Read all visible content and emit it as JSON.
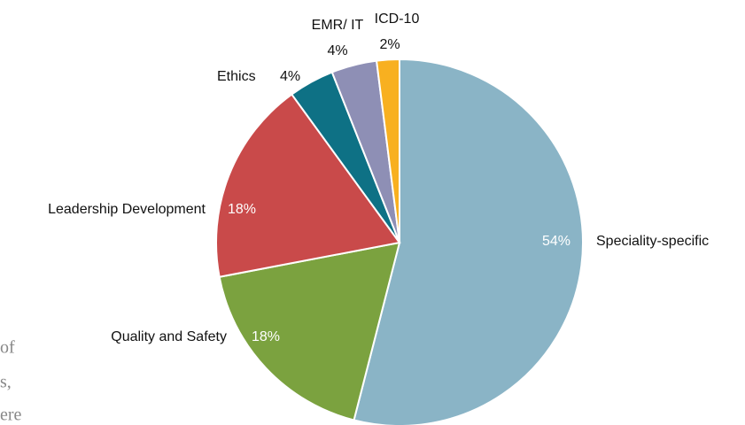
{
  "chart_data": {
    "type": "pie",
    "categories": [
      "Speciality-specific",
      "Quality and Safety",
      "Leadership Development",
      "Ethics",
      "EMR/ IT",
      "ICD-10"
    ],
    "values": [
      54,
      18,
      18,
      4,
      4,
      2
    ],
    "value_labels": [
      "54%",
      "18%",
      "18%",
      "4%",
      "4%",
      "2%"
    ],
    "colors": [
      "#8ab4c6",
      "#7ba23f",
      "#c94a4a",
      "#0e7185",
      "#8e8fb5",
      "#f8b020"
    ]
  },
  "background_text": [
    "of",
    "s,",
    "ere"
  ]
}
